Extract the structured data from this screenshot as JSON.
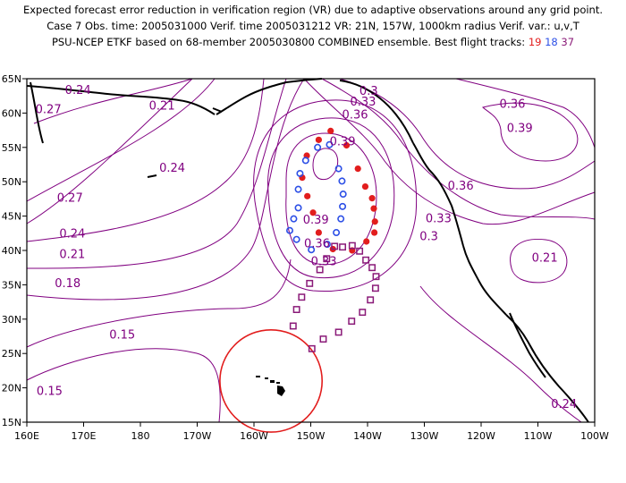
{
  "title": {
    "line1": "Expected forecast error reduction in verification region (VR) due to adaptive observations around any grid point.",
    "line2": "Case 7   Obs. time: 2005031000   Verif. time 2005031212   VR: 21N, 157W, 1000km radius   Verif. var.: u,v,T",
    "line3_prefix": "PSU-NCEP ETKF based on 68-member 2005030800 COMBINED ensemble.   Best flight tracks:",
    "track_red": "19",
    "track_blue": "18",
    "track_purple": "37"
  },
  "axes": {
    "x_ticks": [
      "160E",
      "170E",
      "180",
      "170W",
      "160W",
      "150W",
      "140W",
      "130W",
      "120W",
      "110W",
      "100W"
    ],
    "y_ticks": [
      "15N",
      "20N",
      "25N",
      "30N",
      "35N",
      "40N",
      "45N",
      "50N",
      "55N",
      "60N",
      "65N"
    ]
  },
  "contour_labels": [
    {
      "text": "0.24",
      "lon": 169,
      "lat": 63.3
    },
    {
      "text": "0.27",
      "lon": 163.8,
      "lat": 60.5
    },
    {
      "text": "0.21",
      "lon": 183.8,
      "lat": 61.0
    },
    {
      "text": "0.24",
      "lon": 185.6,
      "lat": 52.0
    },
    {
      "text": "0.27",
      "lon": 167.6,
      "lat": 47.6
    },
    {
      "text": "0.24",
      "lon": 168.0,
      "lat": 42.4
    },
    {
      "text": "0.21",
      "lon": 168.0,
      "lat": 39.4
    },
    {
      "text": "0.18",
      "lon": 167.2,
      "lat": 35.2
    },
    {
      "text": "0.15",
      "lon": 176.8,
      "lat": 27.7
    },
    {
      "text": "0.15",
      "lon": 164.0,
      "lat": 19.5
    },
    {
      "text": "0.3",
      "lon": 220.2,
      "lat": 63.2
    },
    {
      "text": "0.33",
      "lon": 219.2,
      "lat": 61.6
    },
    {
      "text": "0.36",
      "lon": 217.8,
      "lat": 59.7
    },
    {
      "text": "0.39",
      "lon": 215.6,
      "lat": 55.8
    },
    {
      "text": "0.36",
      "lon": 245.5,
      "lat": 61.3
    },
    {
      "text": "0.39",
      "lon": 246.8,
      "lat": 57.8
    },
    {
      "text": "0.36",
      "lon": 236.4,
      "lat": 49.4
    },
    {
      "text": "0.33",
      "lon": 232.5,
      "lat": 44.6
    },
    {
      "text": "0.3",
      "lon": 230.8,
      "lat": 42.0
    },
    {
      "text": "0.21",
      "lon": 251.2,
      "lat": 38.9
    },
    {
      "text": "0.24",
      "lon": 254.6,
      "lat": 17.6
    },
    {
      "text": "0.39",
      "lon": 210.9,
      "lat": 44.4
    },
    {
      "text": "0.36",
      "lon": 211.1,
      "lat": 41.0
    },
    {
      "text": "0.33",
      "lon": 212.3,
      "lat": 38.4
    }
  ],
  "flight_tracks": {
    "red": [
      [
        213.5,
        57.4
      ],
      [
        216.3,
        55.3
      ],
      [
        218.3,
        51.9
      ],
      [
        219.6,
        49.3
      ],
      [
        220.8,
        47.6
      ],
      [
        221.1,
        46.1
      ],
      [
        221.3,
        44.2
      ],
      [
        221.2,
        42.6
      ],
      [
        219.8,
        41.3
      ],
      [
        217.3,
        40.0
      ],
      [
        213.9,
        40.2
      ],
      [
        211.4,
        42.6
      ],
      [
        210.4,
        45.5
      ],
      [
        209.4,
        47.9
      ],
      [
        208.5,
        50.6
      ],
      [
        209.3,
        53.8
      ],
      [
        211.4,
        56.1
      ]
    ],
    "blue": [
      [
        211.2,
        55.0
      ],
      [
        209.1,
        53.1
      ],
      [
        208.1,
        51.2
      ],
      [
        207.8,
        48.9
      ],
      [
        207.8,
        46.2
      ],
      [
        207.0,
        44.6
      ],
      [
        206.3,
        42.9
      ],
      [
        207.5,
        41.6
      ],
      [
        210.1,
        40.1
      ],
      [
        212.9,
        40.9
      ],
      [
        214.5,
        42.6
      ],
      [
        215.3,
        44.6
      ],
      [
        215.6,
        46.4
      ],
      [
        215.7,
        48.2
      ],
      [
        215.5,
        50.1
      ],
      [
        214.9,
        51.9
      ],
      [
        213.3,
        55.4
      ]
    ],
    "purple": [
      [
        212.2,
        27.1
      ],
      [
        210.2,
        25.7
      ],
      [
        206.9,
        29.0
      ],
      [
        207.5,
        31.4
      ],
      [
        208.4,
        33.2
      ],
      [
        209.8,
        35.2
      ],
      [
        211.6,
        37.2
      ],
      [
        212.8,
        38.8
      ],
      [
        214.2,
        40.6
      ],
      [
        215.6,
        40.5
      ],
      [
        217.3,
        40.7
      ],
      [
        218.6,
        39.9
      ],
      [
        219.7,
        38.6
      ],
      [
        220.8,
        37.5
      ],
      [
        221.5,
        36.2
      ],
      [
        221.4,
        34.5
      ],
      [
        220.5,
        32.8
      ],
      [
        219.1,
        31.0
      ],
      [
        217.2,
        29.7
      ],
      [
        214.9,
        28.1
      ]
    ]
  },
  "verification_region": {
    "center_lon": 203,
    "center_lat": 21,
    "radius_deg": 9.0
  }
}
